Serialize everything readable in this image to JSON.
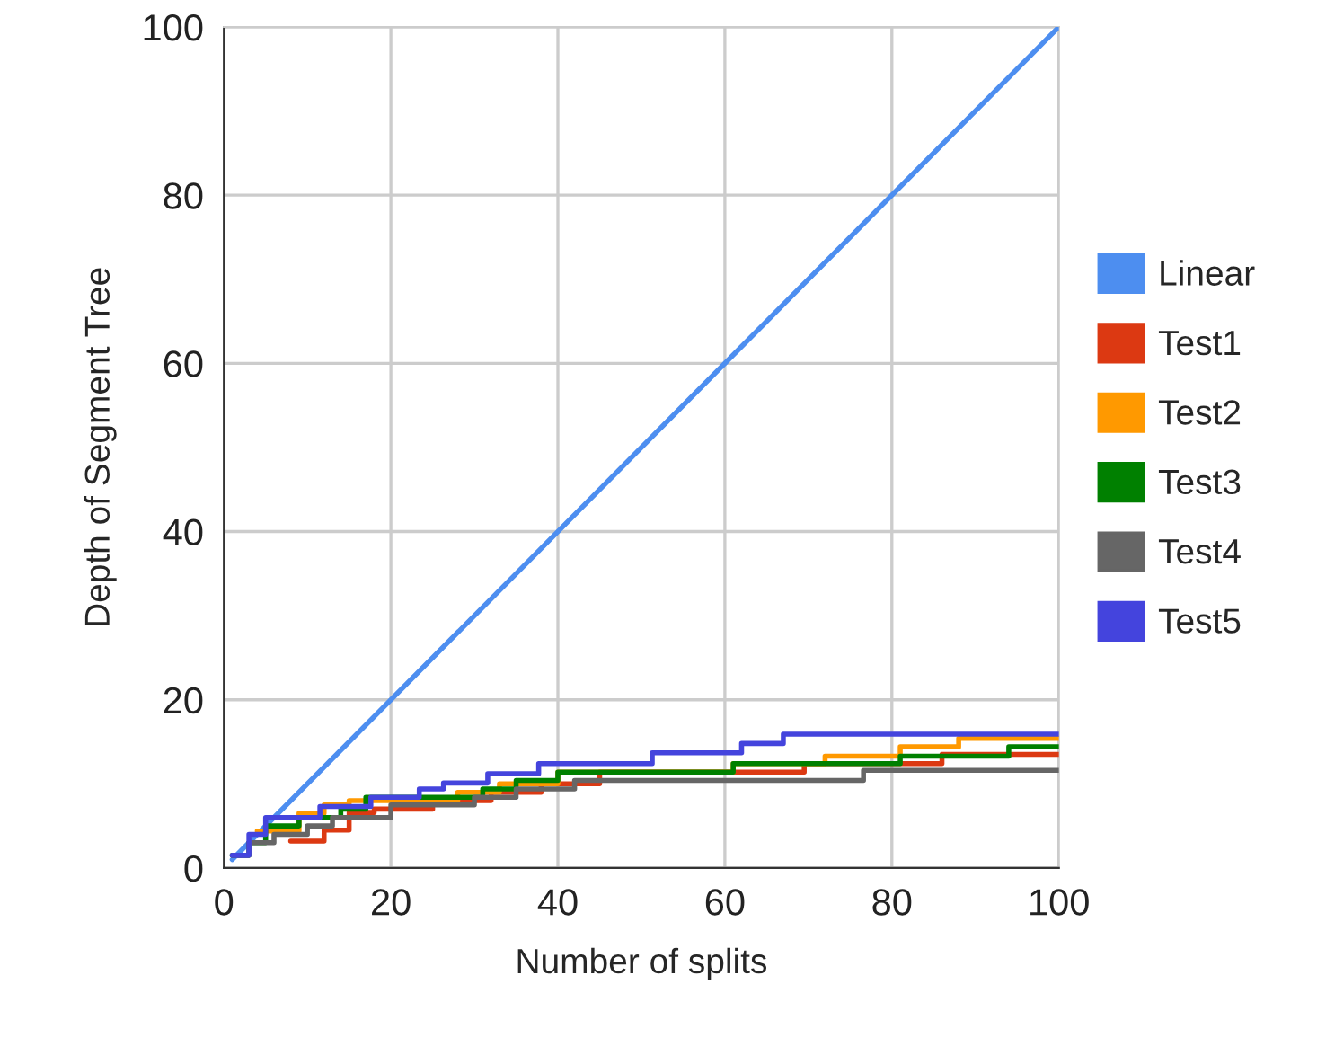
{
  "chart_data": {
    "type": "step",
    "xlabel": "Number of splits",
    "ylabel": "Depth of Segment Tree",
    "xlim": [
      0,
      100
    ],
    "ylim": [
      0,
      100
    ],
    "xticks": [
      0,
      20,
      40,
      60,
      80,
      100
    ],
    "yticks": [
      0,
      20,
      40,
      60,
      80,
      100
    ],
    "grid": true,
    "legend": "right",
    "series": [
      {
        "name": "Linear",
        "type": "line",
        "color": "#4d8ef0",
        "x": [
          1,
          100
        ],
        "values": [
          1,
          100
        ]
      },
      {
        "name": "Test1",
        "color": "#dc3912",
        "x": [
          8,
          12,
          15,
          18,
          25,
          32,
          38,
          45,
          69.5,
          86,
          100
        ],
        "values": [
          3.2,
          4.5,
          6.6,
          7,
          8,
          9,
          10,
          11.4,
          12.4,
          13.5,
          13.5
        ]
      },
      {
        "name": "Test2",
        "color": "#ff9900",
        "x": [
          4,
          9,
          12,
          15,
          28,
          33,
          40,
          61,
          72,
          81,
          88,
          100
        ],
        "values": [
          4.4,
          6.5,
          7.5,
          8,
          9,
          10,
          11.4,
          12.4,
          13.3,
          14.4,
          15.4,
          15.4
        ]
      },
      {
        "name": "Test3",
        "color": "#008000",
        "x": [
          1,
          3,
          5,
          9,
          14,
          17,
          31,
          35,
          40,
          61,
          81,
          94,
          100
        ],
        "values": [
          1.5,
          3,
          5,
          6,
          7,
          8.4,
          9.4,
          10.4,
          11.4,
          12.4,
          13.3,
          14.4,
          14.4
        ]
      },
      {
        "name": "Test4",
        "color": "#666666",
        "x": [
          1,
          3,
          6,
          10,
          13,
          20,
          30,
          35,
          42,
          76.6,
          100
        ],
        "values": [
          1.5,
          3,
          4,
          5,
          6,
          7.5,
          8.4,
          9.4,
          10.4,
          11.6,
          11.6
        ]
      },
      {
        "name": "Test5",
        "color": "#4444dd",
        "x": [
          1,
          3,
          5,
          11.5,
          17.6,
          23.4,
          26.3,
          31.6,
          37.7,
          51.3,
          62,
          67,
          100
        ],
        "values": [
          1.5,
          4,
          6,
          7.3,
          8.4,
          9.4,
          10.1,
          11.2,
          12.4,
          13.7,
          14.8,
          15.9,
          15.9
        ]
      }
    ]
  }
}
